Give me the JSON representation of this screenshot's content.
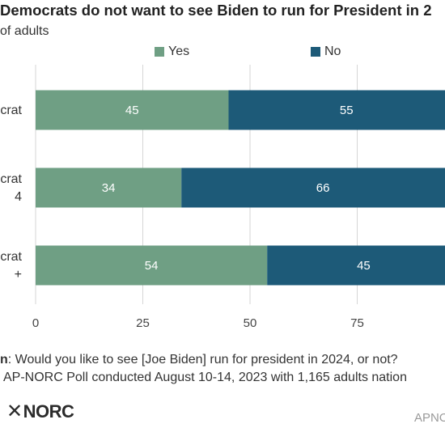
{
  "colors": {
    "yes": "#6f9f84",
    "no": "#1d5a78",
    "grid": "#d6d6d6",
    "axis_text": "#444444"
  },
  "chart_data": {
    "type": "bar",
    "orientation": "horizontal",
    "stacked": true,
    "title": "Democrats do not want to see Biden to run for President in 2",
    "subtitle": "of adults",
    "categories": [
      [
        "crat"
      ],
      [
        "crat",
        "4"
      ],
      [
        "crat",
        "+"
      ]
    ],
    "series": [
      {
        "name": "Yes",
        "values": [
          45,
          34,
          54
        ]
      },
      {
        "name": "No",
        "values": [
          55,
          66,
          45
        ]
      }
    ],
    "xlim": [
      0,
      100
    ],
    "xticks": [
      0,
      25,
      50,
      75
    ],
    "grid": true,
    "legend": "top"
  },
  "footer": {
    "question_label": "n",
    "question_text": ": Would you like to see [Joe Biden] run for president in 2024, or not?",
    "source_text": "AP-NORC Poll conducted August 10-14, 2023 with 1,165 adults nation"
  },
  "branding": {
    "logo_text": "NORC",
    "logo_mark": "✕",
    "watermark": "APNO"
  }
}
